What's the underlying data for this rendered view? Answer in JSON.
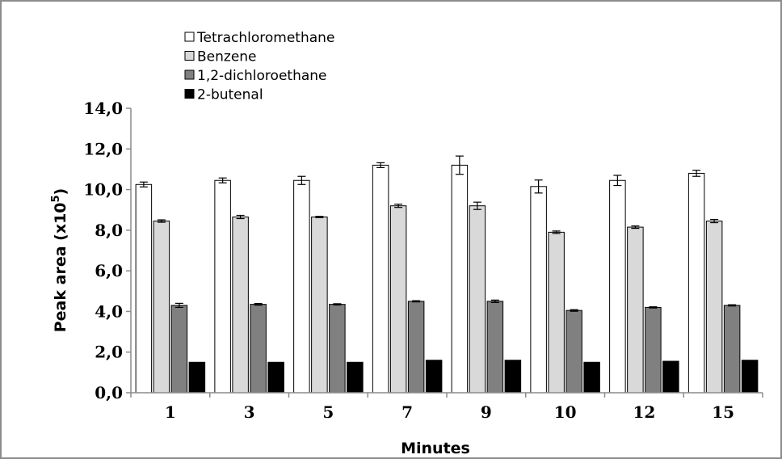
{
  "chart_data": {
    "type": "bar",
    "title": "",
    "xlabel": "Minutes",
    "ylabel": "Peak area (x10",
    "ylabel_sup": "5",
    "ylabel_close": ")",
    "ylim": [
      0,
      14
    ],
    "yticks": [
      "0,0",
      "2,0",
      "4,0",
      "6,0",
      "8,0",
      "10,0",
      "12,0",
      "14,0"
    ],
    "grid": false,
    "legend": "top-left",
    "categories": [
      "1",
      "3",
      "5",
      "7",
      "9",
      "10",
      "12",
      "15"
    ],
    "series": [
      {
        "name": "Tetrachloromethane",
        "color": "#ffffff",
        "values": [
          10.25,
          10.45,
          10.45,
          11.2,
          11.2,
          10.15,
          10.45,
          10.8
        ],
        "errors": [
          0.12,
          0.12,
          0.2,
          0.12,
          0.45,
          0.32,
          0.25,
          0.15
        ]
      },
      {
        "name": "Benzene",
        "color": "#d9d9d9",
        "values": [
          8.45,
          8.65,
          8.65,
          9.2,
          9.2,
          7.9,
          8.15,
          8.45
        ],
        "errors": [
          0.06,
          0.08,
          0.03,
          0.08,
          0.18,
          0.06,
          0.06,
          0.08
        ]
      },
      {
        "name": "1,2-dichloroethane",
        "color": "#808080",
        "values": [
          4.3,
          4.35,
          4.35,
          4.5,
          4.5,
          4.05,
          4.2,
          4.3
        ],
        "errors": [
          0.1,
          0.04,
          0.03,
          0.03,
          0.06,
          0.04,
          0.03,
          0.03
        ]
      },
      {
        "name": "2-butenal",
        "color": "#000000",
        "values": [
          1.5,
          1.5,
          1.5,
          1.6,
          1.6,
          1.5,
          1.55,
          1.6
        ],
        "errors": [
          0,
          0,
          0,
          0,
          0,
          0,
          0,
          0
        ]
      }
    ]
  }
}
